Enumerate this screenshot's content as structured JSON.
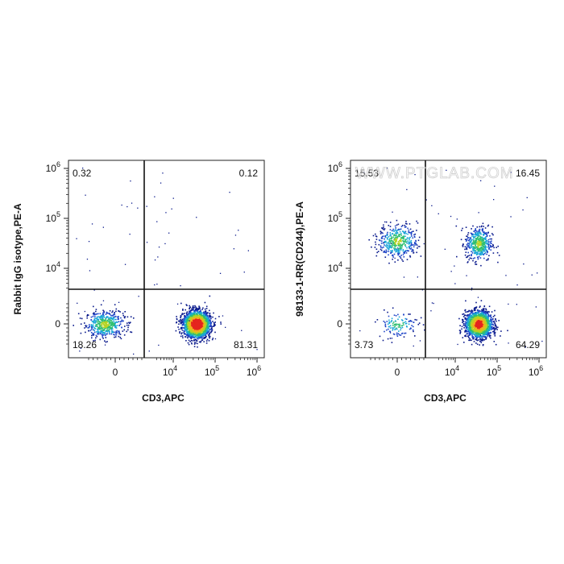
{
  "watermark": "WWW.PTGLAB.COM",
  "chart_data": [
    {
      "type": "scatter",
      "subtype": "flow-cytometry-density-plot",
      "xlabel": "CD3,APC",
      "ylabel": "Rabbit IgG isotype,PE-A",
      "x_ticks": [
        {
          "base": "0",
          "exp": ""
        },
        {
          "base": "10",
          "exp": "4"
        },
        {
          "base": "10",
          "exp": "5"
        },
        {
          "base": "10",
          "exp": "6"
        }
      ],
      "y_ticks": [
        {
          "base": "0",
          "exp": ""
        },
        {
          "base": "10",
          "exp": "4"
        },
        {
          "base": "10",
          "exp": "5"
        },
        {
          "base": "10",
          "exp": "6"
        }
      ],
      "quadrants": {
        "upper_left": "0.32",
        "upper_right": "0.12",
        "lower_left": "18.26",
        "lower_right": "81.31"
      },
      "populations": [
        {
          "cx": -0.6,
          "cy": 0.0,
          "weight": 0.18
        },
        {
          "cx": 4.55,
          "cy": 0.0,
          "weight": 0.82
        }
      ]
    },
    {
      "type": "scatter",
      "subtype": "flow-cytometry-density-plot",
      "xlabel": "CD3,APC",
      "ylabel": "98133-1-RR(CD244),PE-A",
      "x_ticks": [
        {
          "base": "0",
          "exp": ""
        },
        {
          "base": "10",
          "exp": "4"
        },
        {
          "base": "10",
          "exp": "5"
        },
        {
          "base": "10",
          "exp": "6"
        }
      ],
      "y_ticks": [
        {
          "base": "0",
          "exp": ""
        },
        {
          "base": "10",
          "exp": "4"
        },
        {
          "base": "10",
          "exp": "5"
        },
        {
          "base": "10",
          "exp": "6"
        }
      ],
      "quadrants": {
        "upper_left": "15.53",
        "upper_right": "16.45",
        "lower_left": "3.73",
        "lower_right": "64.29"
      },
      "populations": [
        {
          "cx": 0.0,
          "cy": 4.55,
          "weight": 0.155
        },
        {
          "cx": 4.55,
          "cy": 4.5,
          "weight": 0.165
        },
        {
          "cx": 0.0,
          "cy": 0.0,
          "weight": 0.037
        },
        {
          "cx": 4.55,
          "cy": 0.0,
          "weight": 0.643
        }
      ]
    }
  ]
}
